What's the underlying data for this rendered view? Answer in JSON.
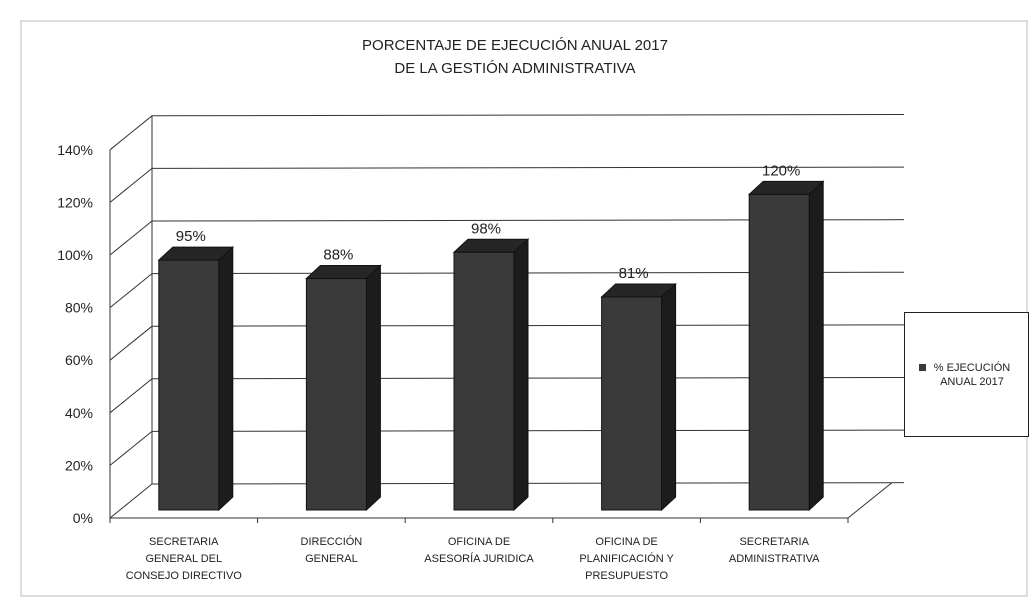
{
  "chart_data": {
    "type": "bar",
    "title_lines": [
      "PORCENTAJE  DE EJECUCIÓN ANUAL 2017",
      "DE LA GESTIÓN ADMINISTRATIVA"
    ],
    "categories": [
      [
        "SECRETARIA",
        "GENERAL DEL",
        "CONSEJO DIRECTIVO"
      ],
      [
        "DIRECCIÓN",
        "GENERAL"
      ],
      [
        "OFICINA DE",
        "ASESORÍA JURIDICA"
      ],
      [
        "OFICINA DE",
        "PLANIFICACIÓN Y",
        "PRESUPUESTO"
      ],
      [
        "SECRETARIA",
        "ADMINISTRATIVA"
      ]
    ],
    "series": [
      {
        "name": "% EJECUCIÓN ANUAL 2017",
        "values": [
          95,
          88,
          98,
          81,
          120
        ]
      }
    ],
    "data_labels": [
      "95%",
      "88%",
      "98%",
      "81%",
      "120%"
    ],
    "y_ticks": [
      "0%",
      "20%",
      "40%",
      "60%",
      "80%",
      "100%",
      "120%",
      "140%"
    ],
    "ylim": [
      0,
      140
    ],
    "grid": true,
    "legend_position": "right",
    "bar_color": "#3a3a3a"
  }
}
